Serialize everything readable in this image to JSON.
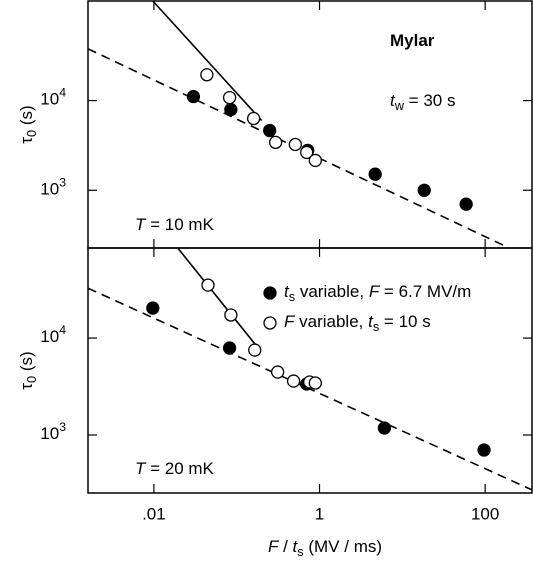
{
  "chart_data": [
    {
      "type": "scatter",
      "log_x": true,
      "log_y": true,
      "xlim": [
        0.0016,
        368
      ],
      "ylim": [
        227,
        129000
      ],
      "yticks": [
        {
          "value": 1000,
          "label": [
            "10",
            "3"
          ]
        },
        {
          "value": 10000,
          "label": [
            "10",
            "4"
          ]
        }
      ],
      "ylabel": [
        {
          "text": "τ"
        },
        {
          "text": "0",
          "sub": true
        },
        {
          "text": " (s)"
        }
      ],
      "series": [
        {
          "marker": "filled",
          "color": "#000000",
          "x": [
            0.03,
            0.085,
            0.25,
            0.72,
            4.7,
            18.4,
            59
          ],
          "values": [
            11100,
            7940,
            4640,
            2780,
            1510,
            1000,
            700
          ]
        },
        {
          "marker": "open",
          "color": "#000000",
          "x": [
            0.0436,
            0.082,
            0.16,
            0.295,
            0.51,
            0.7,
            0.89
          ],
          "values": [
            19400,
            10800,
            6310,
            3420,
            3240,
            2640,
            2150
          ]
        }
      ],
      "lines": [
        {
          "style": "dashed",
          "x": [
            0.0016,
            195
          ],
          "values": [
            37800,
            227
          ]
        },
        {
          "style": "solid",
          "x": [
            0.0097,
            0.2
          ],
          "values": [
            129000,
            6000
          ]
        }
      ],
      "annotations": [
        [
          {
            "text": "Mylar",
            "bold": true
          }
        ],
        [
          {
            "text": "t",
            "italic": true
          },
          {
            "text": "w",
            "sub": true
          },
          {
            "text": " =  30 s"
          }
        ],
        [
          {
            "text": "T",
            "italic": true
          },
          {
            "text": " = 10 mK"
          }
        ]
      ]
    },
    {
      "type": "scatter",
      "log_x": true,
      "log_y": true,
      "xlim": [
        0.0016,
        368
      ],
      "ylim": [
        252,
        85000
      ],
      "xticks": [
        {
          "value": 0.01,
          "label": ".01"
        },
        1,
        100
      ],
      "xlabel": [
        {
          "text": "F",
          "italic": true
        },
        {
          "text": " / "
        },
        {
          "text": "t",
          "italic": true
        },
        {
          "text": "s",
          "sub": true
        },
        {
          "text": " (MV / ms)"
        }
      ],
      "yticks": [
        {
          "value": 1000,
          "label": [
            "10",
            "3"
          ]
        },
        {
          "value": 10000,
          "label": [
            "10",
            "4"
          ]
        }
      ],
      "ylabel": [
        {
          "text": "τ"
        },
        {
          "text": "0",
          "sub": true
        },
        {
          "text": " (s)"
        }
      ],
      "legend": "upper right",
      "series": [
        {
          "name": [
            {
              "text": "t",
              "italic": true
            },
            {
              "text": "s",
              "sub": true
            },
            {
              "text": " variable, "
            },
            {
              "text": "F",
              "italic": true
            },
            {
              "text": " = 6.7 MV/m"
            }
          ],
          "marker": "filled",
          "color": "#000000",
          "x": [
            0.0097,
            0.082,
            0.7,
            6.07,
            97
          ],
          "values": [
            20400,
            7890,
            3360,
            1180,
            700
          ]
        },
        {
          "name": [
            {
              "text": "F",
              "italic": true
            },
            {
              "text": " variable, "
            },
            {
              "text": "t",
              "italic": true
            },
            {
              "text": "s",
              "sub": true
            },
            {
              "text": " = 10 s"
            }
          ],
          "marker": "open",
          "color": "#000000",
          "x": [
            0.045,
            0.085,
            0.165,
            0.312,
            0.486,
            0.76,
            0.89
          ],
          "values": [
            35200,
            17300,
            7520,
            4460,
            3600,
            3520,
            3440
          ]
        }
      ],
      "lines": [
        {
          "style": "dashed",
          "x": [
            0.0016,
            368
          ],
          "values": [
            32700,
            271
          ]
        },
        {
          "style": "solid",
          "x": [
            0.0194,
            0.17
          ],
          "values": [
            85000,
            8470
          ]
        }
      ],
      "annotations": [
        [
          {
            "text": "T",
            "italic": true
          },
          {
            "text": " = 20 mK"
          }
        ]
      ]
    }
  ]
}
